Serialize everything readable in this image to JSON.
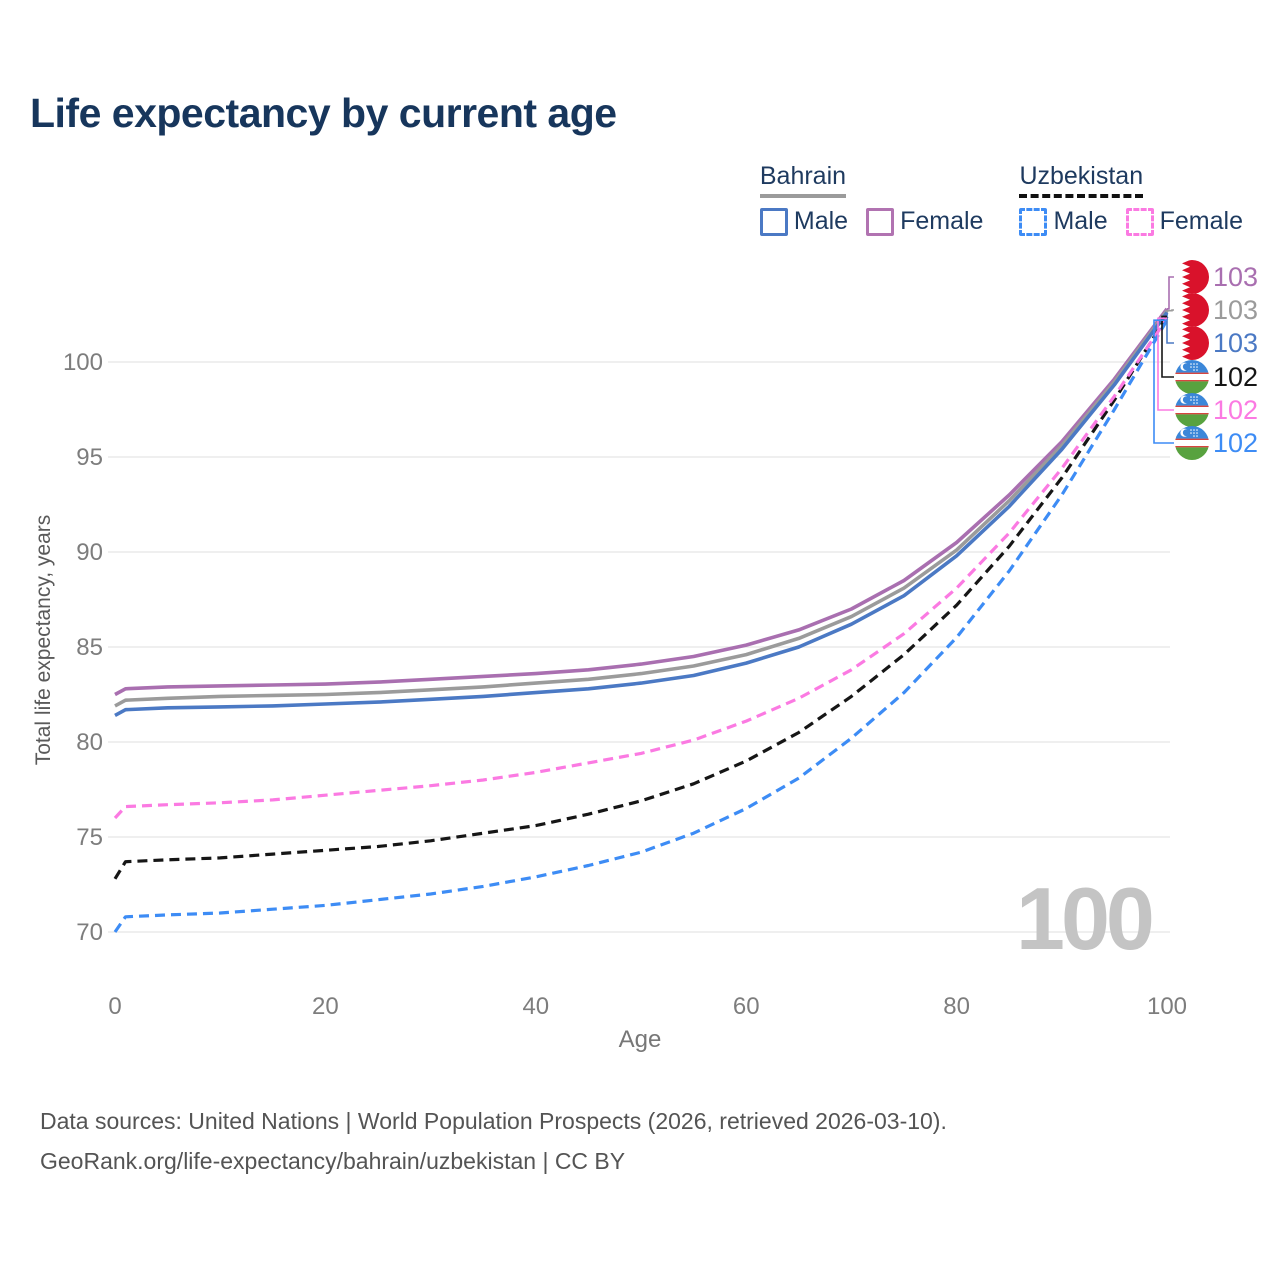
{
  "title": "Life expectancy by current age",
  "watermark_age": "100",
  "footer": {
    "line1": "Data sources: United Nations | World Population Prospects (2026, retrieved 2026-03-10).",
    "line2": "GeoRank.org/life-expectancy/bahrain/uzbekistan | CC BY"
  },
  "legend": {
    "groups": [
      {
        "country": "Bahrain",
        "underline_style": "solid",
        "underline_color": "#9b9b9b",
        "items": [
          {
            "label": "Male",
            "color": "#4b79c4",
            "dashed": false
          },
          {
            "label": "Female",
            "color": "#b173b1",
            "dashed": false
          }
        ]
      },
      {
        "country": "Uzbekistan",
        "underline_style": "dashed",
        "underline_color": "#111111",
        "items": [
          {
            "label": "Male",
            "color": "#3d8cf5",
            "dashed": true
          },
          {
            "label": "Female",
            "color": "#fb7ae2",
            "dashed": true
          }
        ]
      }
    ]
  },
  "chart_data": {
    "type": "line",
    "title": "Life expectancy by current age",
    "xlabel": "Age",
    "ylabel": "Total life expectancy, years",
    "xlim": [
      0,
      100
    ],
    "ylim": [
      68,
      104
    ],
    "x_ticks": [
      0,
      20,
      40,
      60,
      80,
      100
    ],
    "y_ticks": [
      70,
      75,
      80,
      85,
      90,
      95,
      100
    ],
    "grid": "horizontal",
    "legend_position": "top-right",
    "x": [
      0,
      1,
      5,
      10,
      15,
      20,
      25,
      30,
      35,
      40,
      45,
      50,
      55,
      60,
      65,
      70,
      75,
      80,
      85,
      90,
      95,
      100
    ],
    "series": [
      {
        "name": "Bahrain Female",
        "country": "Bahrain",
        "sex": "Female",
        "color": "#a96fb0",
        "dash": null,
        "values": [
          82.5,
          82.8,
          82.9,
          82.95,
          83.0,
          83.05,
          83.15,
          83.3,
          83.45,
          83.6,
          83.8,
          84.1,
          84.5,
          85.1,
          85.9,
          87.0,
          88.5,
          90.5,
          93.0,
          95.8,
          99.1,
          102.8
        ]
      },
      {
        "name": "Bahrain Total",
        "country": "Bahrain",
        "sex": "Both",
        "color": "#9b9b9b",
        "dash": null,
        "values": [
          81.9,
          82.2,
          82.3,
          82.4,
          82.45,
          82.5,
          82.6,
          82.75,
          82.9,
          83.1,
          83.3,
          83.6,
          84.0,
          84.6,
          85.45,
          86.6,
          88.1,
          90.1,
          92.7,
          95.6,
          98.95,
          102.7
        ]
      },
      {
        "name": "Bahrain Male",
        "country": "Bahrain",
        "sex": "Male",
        "color": "#4b79c4",
        "dash": null,
        "values": [
          81.4,
          81.7,
          81.8,
          81.85,
          81.9,
          82.0,
          82.1,
          82.25,
          82.4,
          82.6,
          82.8,
          83.1,
          83.5,
          84.15,
          85.0,
          86.2,
          87.7,
          89.8,
          92.4,
          95.4,
          98.8,
          102.6
        ]
      },
      {
        "name": "Uzbekistan Total",
        "country": "Uzbekistan",
        "sex": "Both",
        "color": "#161616",
        "dash": "10 6",
        "values": [
          72.8,
          73.7,
          73.8,
          73.9,
          74.1,
          74.3,
          74.5,
          74.8,
          75.2,
          75.6,
          76.2,
          76.9,
          77.8,
          79.0,
          80.5,
          82.4,
          84.6,
          87.2,
          90.3,
          93.9,
          98.0,
          102.4
        ]
      },
      {
        "name": "Uzbekistan Female",
        "country": "Uzbekistan",
        "sex": "Female",
        "color": "#fb7ae2",
        "dash": "10 6",
        "values": [
          76.0,
          76.6,
          76.7,
          76.8,
          76.95,
          77.2,
          77.45,
          77.7,
          78.0,
          78.4,
          78.9,
          79.4,
          80.1,
          81.1,
          82.3,
          83.8,
          85.7,
          88.1,
          91.0,
          94.4,
          98.2,
          102.3
        ]
      },
      {
        "name": "Uzbekistan Male",
        "country": "Uzbekistan",
        "sex": "Male",
        "color": "#3d8cf5",
        "dash": "10 6",
        "values": [
          70.0,
          70.8,
          70.9,
          71.0,
          71.2,
          71.4,
          71.7,
          72.0,
          72.4,
          72.9,
          73.5,
          74.2,
          75.2,
          76.5,
          78.1,
          80.2,
          82.6,
          85.5,
          89.0,
          93.0,
          97.5,
          102.2
        ]
      }
    ],
    "end_labels": [
      {
        "value": "103",
        "flag": "bahrain",
        "series": "Bahrain Female",
        "color": "#a96fb0"
      },
      {
        "value": "103",
        "flag": "bahrain",
        "series": "Bahrain Total",
        "color": "#9b9b9b"
      },
      {
        "value": "103",
        "flag": "bahrain",
        "series": "Bahrain Male",
        "color": "#4b79c4"
      },
      {
        "value": "102",
        "flag": "uzbekistan",
        "series": "Uzbekistan Total",
        "color": "#161616"
      },
      {
        "value": "102",
        "flag": "uzbekistan",
        "series": "Uzbekistan Female",
        "color": "#fb7ae2"
      },
      {
        "value": "102",
        "flag": "uzbekistan",
        "series": "Uzbekistan Male",
        "color": "#3d8cf5"
      }
    ]
  }
}
